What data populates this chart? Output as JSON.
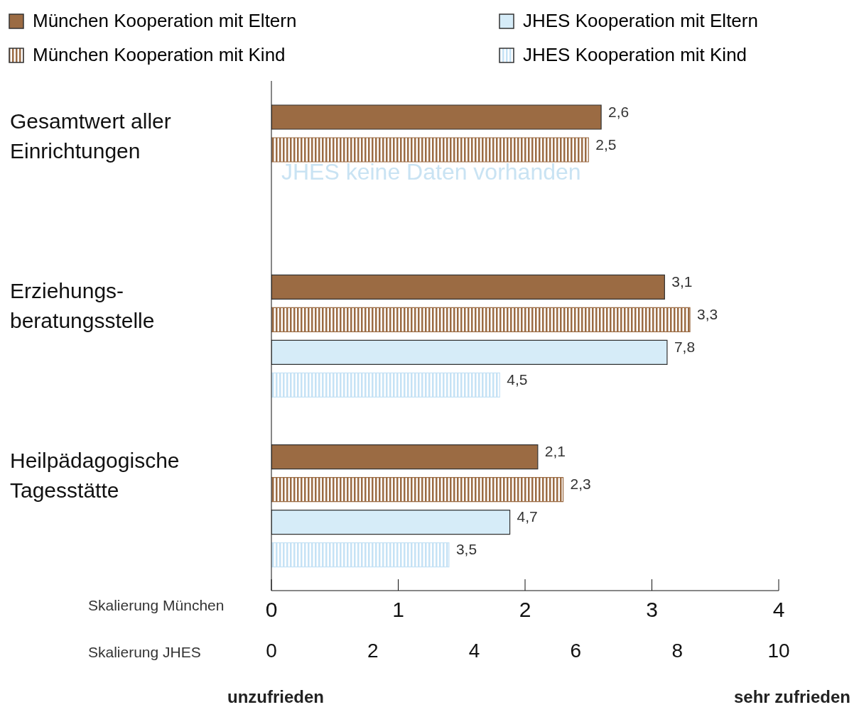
{
  "chart_data": {
    "type": "bar",
    "orientation": "horizontal",
    "categories": [
      "Gesamtwert aller Einrichtungen",
      "Erziehungs-beratungsstelle",
      "Heilpädagogische Tagesstätte"
    ],
    "series": [
      {
        "name": "München Kooperation mit Eltern",
        "color": "#9b6b43",
        "values": [
          2.6,
          3.1,
          2.1
        ],
        "value_labels": [
          "2,6",
          "3,1",
          "2,1"
        ]
      },
      {
        "name": "München Kooperation mit Kind",
        "color": "#9b6b43",
        "values": [
          2.5,
          3.3,
          2.3
        ],
        "value_labels": [
          "2,5",
          "3,3",
          "2,3"
        ]
      },
      {
        "name": "JHES Kooperation mit Eltern",
        "color": "#d6ecf8",
        "axis": "x2",
        "values": [
          null,
          7.8,
          4.7
        ],
        "value_labels": [
          null,
          "7,8",
          "4,7"
        ]
      },
      {
        "name": "JHES Kooperation mit Kind",
        "color": "#c5e2f5",
        "axis": "x2",
        "values": [
          null,
          4.5,
          3.5
        ],
        "value_labels": [
          null,
          "4,5",
          "3,5"
        ]
      }
    ],
    "xlim": [
      0,
      4
    ],
    "xticks": [
      0,
      1,
      2,
      3,
      4
    ],
    "xlabel": "Skalierung München",
    "x2lim": [
      0,
      10
    ],
    "x2ticks": [
      0,
      2,
      4,
      6,
      8,
      10
    ],
    "x2label": "Skalierung JHES",
    "legend": "top",
    "annotations": [
      "JHES keine Daten vorhanden",
      "unzufrieden",
      "sehr zufrieden"
    ]
  }
}
